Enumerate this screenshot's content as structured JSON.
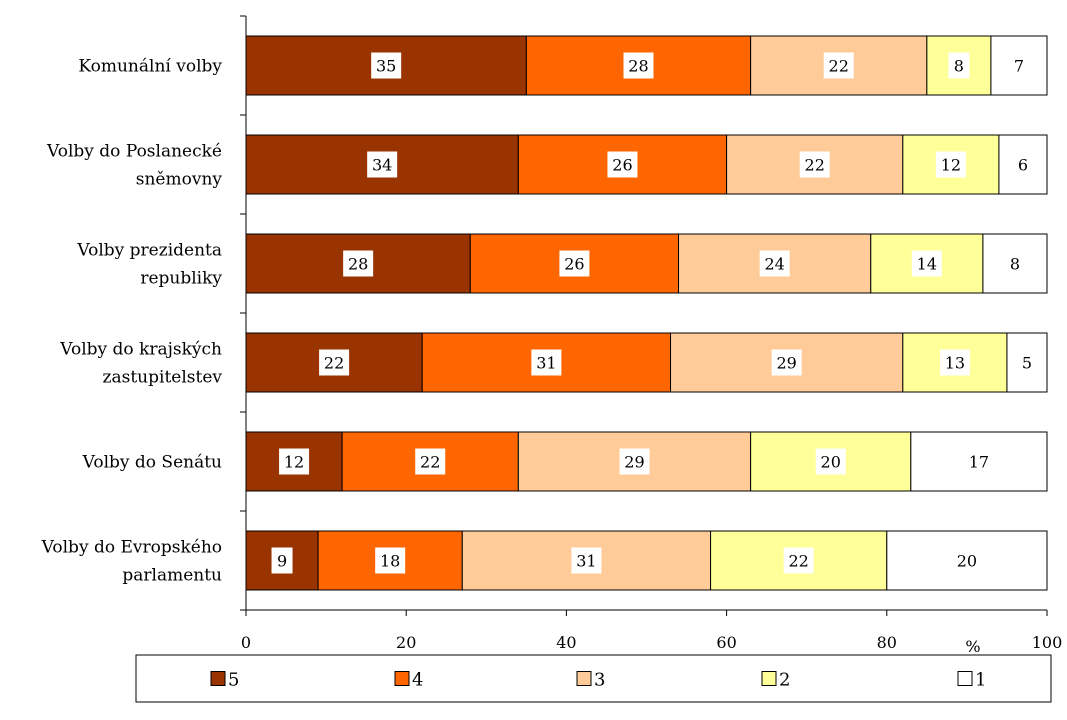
{
  "chart_data": {
    "type": "bar",
    "orientation": "horizontal",
    "stacked": true,
    "categories": [
      "Komunální volby",
      "Volby do Poslanecké sněmovny",
      "Volby prezidenta republiky",
      "Volby do krajských zastupitelstev",
      "Volby do Senátu",
      "Volby do Evropského parlamentu"
    ],
    "category_lines": [
      [
        "Komunální volby"
      ],
      [
        "Volby do Poslanecké",
        "sněmovny"
      ],
      [
        "Volby prezidenta",
        "republiky"
      ],
      [
        "Volby do krajských",
        "zastupitelstev"
      ],
      [
        "Volby do Senátu"
      ],
      [
        "Volby do Evropského",
        "parlamentu"
      ]
    ],
    "series": [
      {
        "name": "5",
        "color": "#993300",
        "values": [
          35,
          34,
          28,
          22,
          12,
          9
        ]
      },
      {
        "name": "4",
        "color": "#ff6600",
        "values": [
          28,
          26,
          26,
          31,
          22,
          18
        ]
      },
      {
        "name": "3",
        "color": "#ffcc99",
        "values": [
          22,
          22,
          24,
          29,
          29,
          31
        ]
      },
      {
        "name": "2",
        "color": "#ffff99",
        "values": [
          8,
          12,
          14,
          13,
          20,
          22
        ]
      },
      {
        "name": "1",
        "color": "#ffffff",
        "values": [
          7,
          6,
          8,
          5,
          17,
          20
        ]
      }
    ],
    "xlim": [
      0,
      100
    ],
    "xticks": [
      0,
      20,
      40,
      60,
      80,
      100
    ],
    "xunit": "%",
    "grid": false,
    "legend_position": "bottom"
  }
}
